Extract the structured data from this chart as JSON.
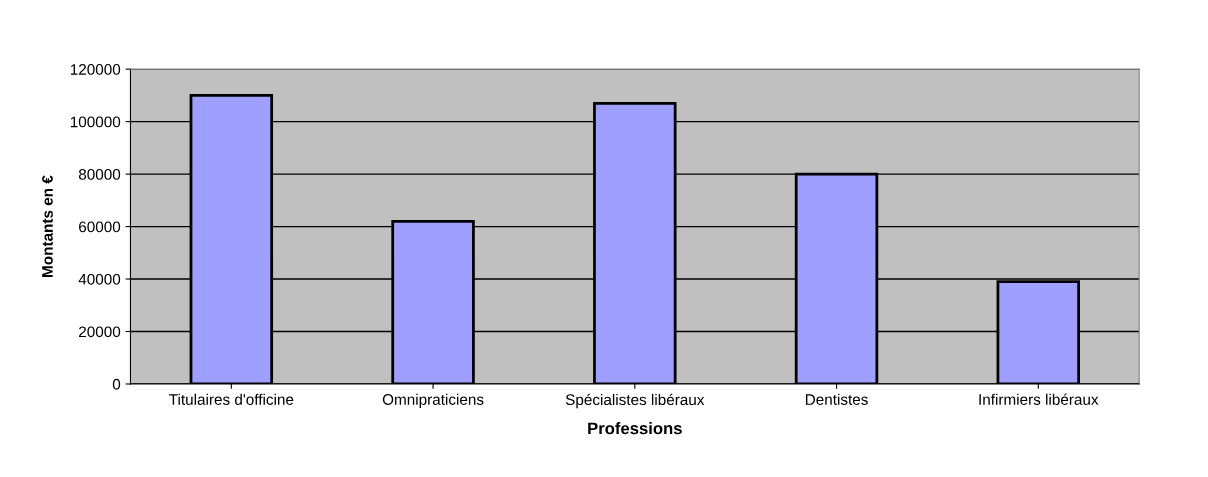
{
  "chart_data": {
    "type": "bar",
    "xlabel": "Professions",
    "ylabel": "Montants en €",
    "categories": [
      "Titulaires d'officine",
      "Omnipraticiens",
      "Spécialistes libéraux",
      "Dentistes",
      "Infirmiers libéraux"
    ],
    "values": [
      110000,
      62000,
      107000,
      80000,
      39000
    ],
    "color": "#9f9fff",
    "ylim": [
      0,
      120000
    ],
    "yticks": [
      0,
      20000,
      40000,
      60000,
      80000,
      100000,
      120000
    ],
    "grid": "y"
  }
}
